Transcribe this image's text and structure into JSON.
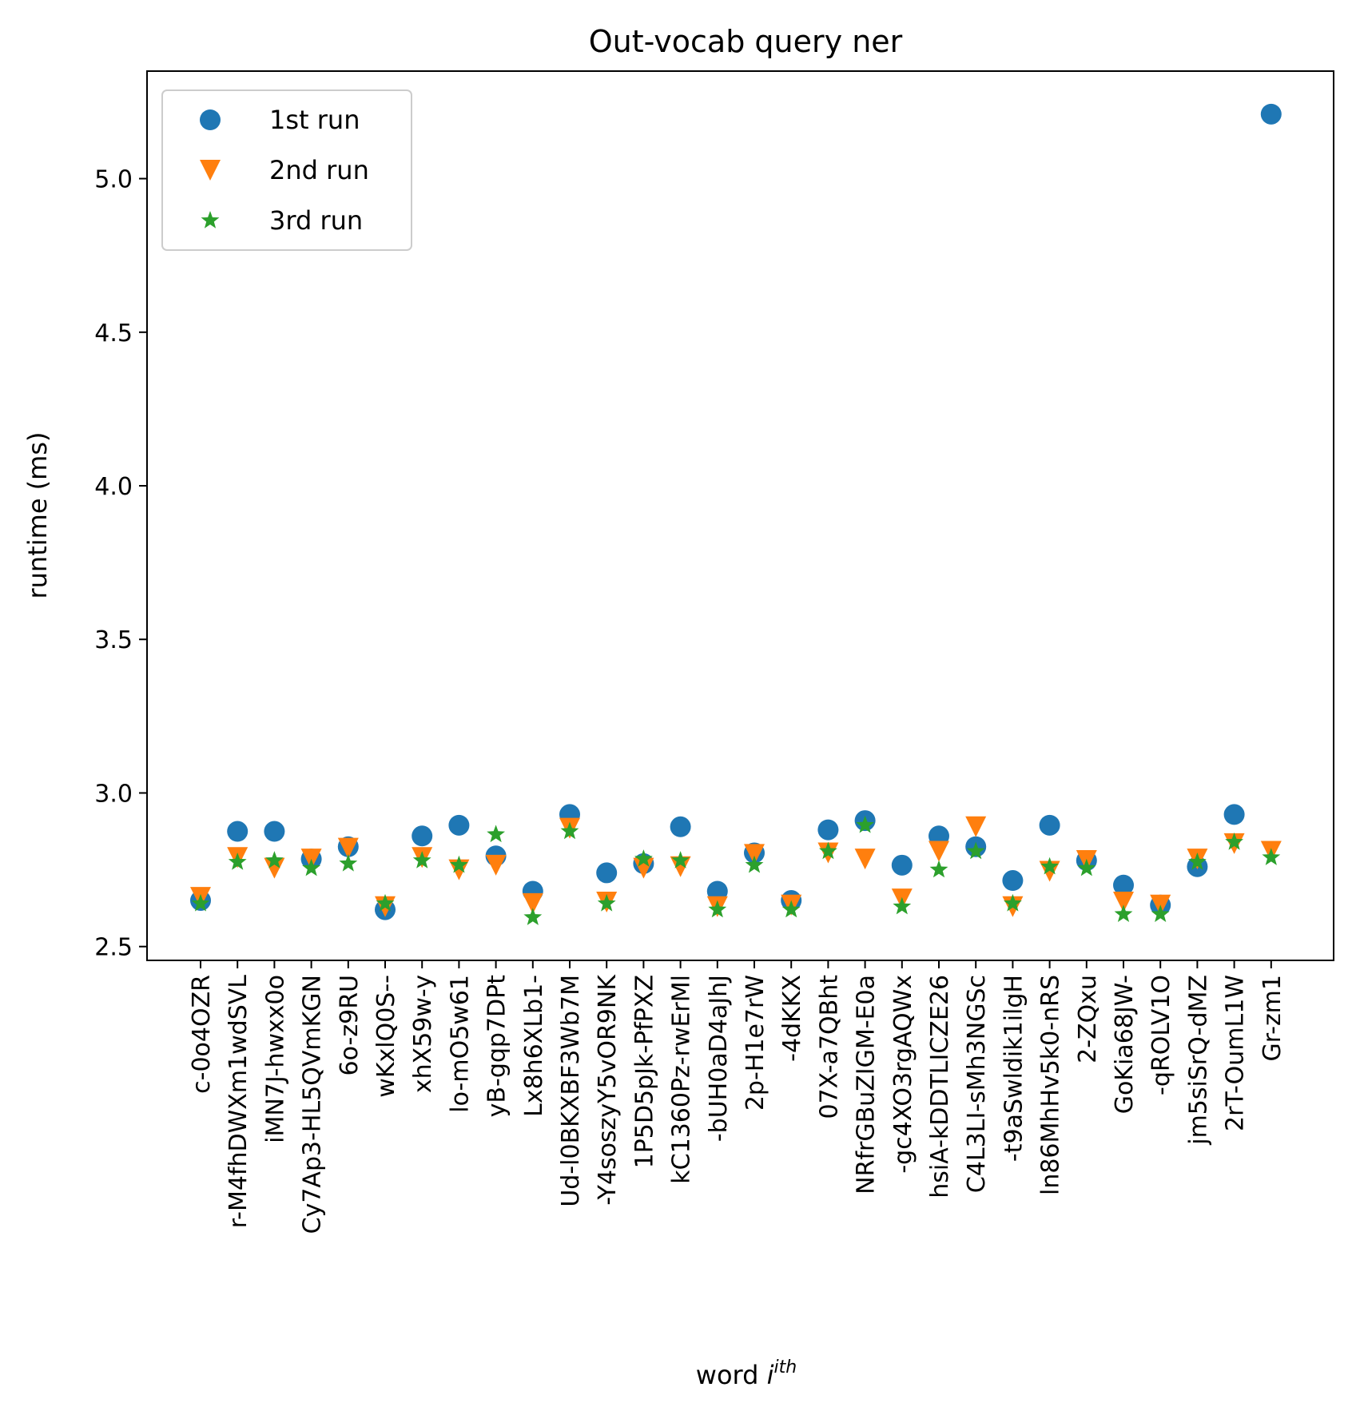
{
  "chart_data": {
    "type": "scatter",
    "title": "Out-vocab query ner",
    "xlabel": "word",
    "xlabel_sup": "ith",
    "ylabel": "runtime (ms)",
    "ylim": [
      2.455,
      5.35
    ],
    "yticks": [
      2.5,
      3.0,
      3.5,
      4.0,
      4.5,
      5.0
    ],
    "ytick_labels": [
      "2.5",
      "3.0",
      "3.5",
      "4.0",
      "4.5",
      "5.0"
    ],
    "legend_position": "top-left",
    "categories": [
      "c-0o4OZR",
      "r-M4fhDWXm1wdSVL",
      "iMN7J-hwxx0o",
      "Cy7Ap3-HL5QVmKGN",
      "6o-z9RU",
      "wKxlQ0S--",
      "xhX59w-y",
      "lo-mO5w61",
      "yB-gqp7DPt",
      "Lx8h6XLb1-",
      "Ud-l0BKXBF3Wb7M",
      "-Y4soszyY5vOR9NK",
      "1P5D5pJk-PfPXZ",
      "kC1360Pz-rwErMl",
      "-bUH0aD4aJhJ",
      "2p-H1e7rW",
      "-4dKKX",
      "07X-a7QBht",
      "NRfrGBuZIGM-E0a",
      "-gc4XO3rgAQWx",
      "hsiA-kDDTLICZE26",
      "C4L3LI-sMh3NGSc",
      "-t9aSwldik1ilgH",
      "ln86MhHv5k0-nRS",
      "2-ZQxu",
      "GoKia68JW-",
      "-qROLV1O",
      "jm5siSrQ-dMZ",
      "2rT-OumL1W",
      "Gr-zm1"
    ],
    "series": [
      {
        "name": "1st run",
        "marker": "circle",
        "color": "#1f77b4",
        "values": [
          2.65,
          2.875,
          2.875,
          2.785,
          2.825,
          2.62,
          2.86,
          2.895,
          2.795,
          2.68,
          2.93,
          2.74,
          2.77,
          2.89,
          2.68,
          2.805,
          2.65,
          2.88,
          2.91,
          2.765,
          2.86,
          2.825,
          2.715,
          2.895,
          2.78,
          2.7,
          2.635,
          2.76,
          2.93,
          5.21
        ]
      },
      {
        "name": "2nd run",
        "marker": "triangle-down",
        "color": "#ff7f0e",
        "values": [
          2.66,
          2.79,
          2.755,
          2.785,
          2.82,
          2.63,
          2.79,
          2.75,
          2.765,
          2.64,
          2.885,
          2.645,
          2.755,
          2.76,
          2.63,
          2.8,
          2.635,
          2.805,
          2.785,
          2.655,
          2.81,
          2.89,
          2.63,
          2.745,
          2.78,
          2.645,
          2.635,
          2.785,
          2.835,
          2.81
        ]
      },
      {
        "name": "3rd run",
        "marker": "star",
        "color": "#2ca02c",
        "values": [
          2.64,
          2.775,
          2.78,
          2.755,
          2.77,
          2.64,
          2.78,
          2.765,
          2.865,
          2.595,
          2.875,
          2.64,
          2.785,
          2.78,
          2.62,
          2.765,
          2.62,
          2.81,
          2.895,
          2.63,
          2.75,
          2.81,
          2.64,
          2.76,
          2.755,
          2.605,
          2.605,
          2.775,
          2.84,
          2.79
        ]
      }
    ]
  }
}
